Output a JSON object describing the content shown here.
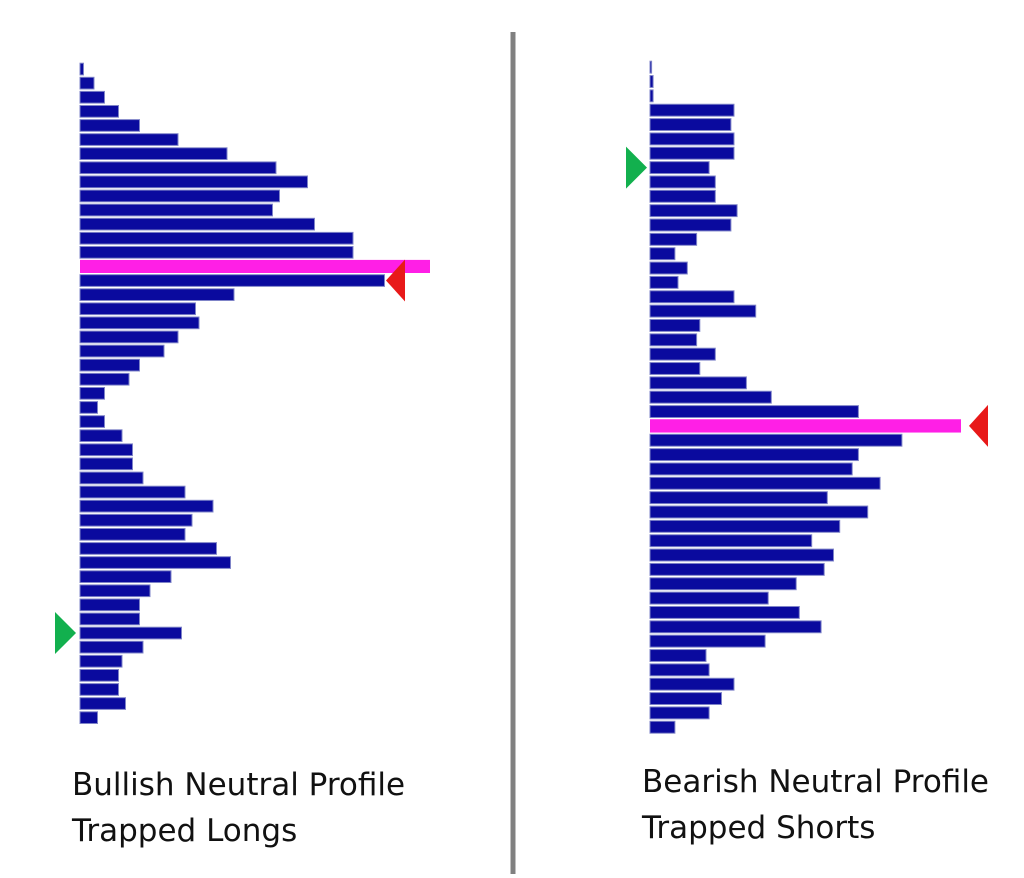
{
  "colors": {
    "bar_fill": "#0a0a9e",
    "bar_edge": "#7f84c8",
    "poc_fill": "#ff1fe6",
    "arrow_green": "#12b04e",
    "arrow_red": "#e81919",
    "divider": "#808080",
    "background": "#ffffff"
  },
  "captions": {
    "left": {
      "line1": "Bullish Neutral Profile",
      "line2": "Trapped Longs"
    },
    "right": {
      "line1": "Bearish Neutral Profile",
      "line2": "Trapped Shorts"
    }
  },
  "chart_data": [
    {
      "type": "bar",
      "orientation": "horizontal",
      "label": "Bullish Neutral Profile",
      "value_axis_max": 100,
      "values": [
        1,
        4,
        7,
        11,
        17,
        28,
        42,
        56,
        65,
        57,
        55,
        67,
        78,
        78,
        100,
        87,
        44,
        33,
        34,
        28,
        24,
        17,
        14,
        7,
        5,
        7,
        12,
        15,
        15,
        18,
        30,
        38,
        32,
        30,
        39,
        43,
        26,
        20,
        17,
        17,
        29,
        18,
        12,
        11,
        11,
        13,
        5
      ],
      "poc_row": 14,
      "markers": [
        {
          "kind": "green-arrow",
          "row": 40,
          "side": "left",
          "direction": "right"
        },
        {
          "kind": "red-arrow",
          "row": 15,
          "side": "right",
          "direction": "left"
        }
      ]
    },
    {
      "type": "bar",
      "orientation": "horizontal",
      "label": "Bearish Neutral Profile",
      "value_axis_max": 100,
      "values": [
        0.5,
        1,
        1,
        27,
        26,
        27,
        27,
        19,
        21,
        21,
        28,
        26,
        15,
        8,
        12,
        9,
        27,
        34,
        16,
        15,
        21,
        16,
        31,
        39,
        67,
        100,
        81,
        67,
        65,
        74,
        57,
        70,
        61,
        52,
        59,
        56,
        47,
        38,
        48,
        55,
        37,
        18,
        19,
        27,
        23,
        19,
        8
      ],
      "poc_row": 25,
      "markers": [
        {
          "kind": "green-arrow",
          "row": 7,
          "side": "left",
          "direction": "right"
        },
        {
          "kind": "red-arrow",
          "row": 25,
          "side": "right",
          "direction": "left"
        }
      ]
    }
  ]
}
